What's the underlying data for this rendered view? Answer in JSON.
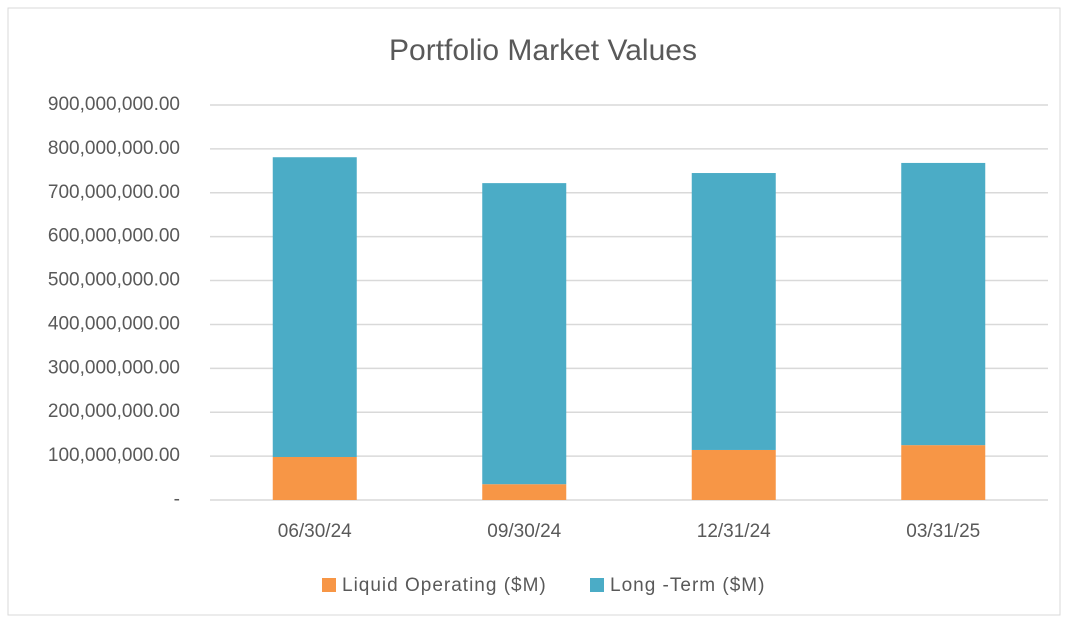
{
  "chart_data": {
    "type": "stacked_bar",
    "title": "Portfolio Market Values",
    "categories": [
      "06/30/24",
      "09/30/24",
      "12/31/24",
      "03/31/25"
    ],
    "series": [
      {
        "name": "Liquid Operating ($M)",
        "color": "#f79646",
        "values": [
          98000000,
          36000000,
          114000000,
          125000000
        ]
      },
      {
        "name": "Long -Term ($M)",
        "color": "#4bacc6",
        "values": [
          683000000,
          686000000,
          631000000,
          643000000
        ]
      }
    ],
    "ylim": [
      0,
      900000000
    ],
    "yticks": [
      {
        "value": 0,
        "label": "-"
      },
      {
        "value": 100000000,
        "label": "100,000,000.00"
      },
      {
        "value": 200000000,
        "label": "200,000,000.00"
      },
      {
        "value": 300000000,
        "label": "300,000,000.00"
      },
      {
        "value": 400000000,
        "label": "400,000,000.00"
      },
      {
        "value": 500000000,
        "label": "500,000,000.00"
      },
      {
        "value": 600000000,
        "label": "600,000,000.00"
      },
      {
        "value": 700000000,
        "label": "700,000,000.00"
      },
      {
        "value": 800000000,
        "label": "800,000,000.00"
      },
      {
        "value": 900000000,
        "label": "900,000,000.00"
      }
    ],
    "grid": true,
    "legend": "bottom"
  }
}
